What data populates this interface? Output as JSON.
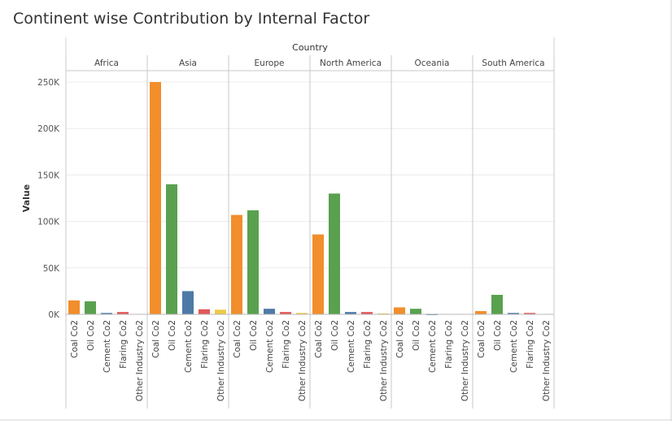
{
  "chart_data": {
    "type": "bar",
    "title": "Continent wise Contribution by Internal Factor",
    "column_header": "Country",
    "ylabel": "Value",
    "ylim": [
      0,
      250000
    ],
    "yticks": [
      {
        "value": 0,
        "label": "0K"
      },
      {
        "value": 50000,
        "label": "50K"
      },
      {
        "value": 100000,
        "label": "100K"
      },
      {
        "value": 150000,
        "label": "150K"
      },
      {
        "value": 200000,
        "label": "200K"
      },
      {
        "value": 250000,
        "label": "250K"
      }
    ],
    "grid": true,
    "categories": [
      "Coal Co2",
      "Oil Co2",
      "Cement Co2",
      "Flaring Co2",
      "Other Industry Co2"
    ],
    "category_colors": [
      "#f28e2b",
      "#59a14f",
      "#4e79a7",
      "#e15759",
      "#edc948"
    ],
    "panels": [
      {
        "name": "Africa",
        "values": [
          15000,
          14000,
          1500,
          2500,
          0
        ]
      },
      {
        "name": "Asia",
        "values": [
          250000,
          140000,
          25000,
          5500,
          5000
        ]
      },
      {
        "name": "Europe",
        "values": [
          107000,
          112000,
          6000,
          2500,
          1500
        ]
      },
      {
        "name": "North America",
        "values": [
          86000,
          130000,
          2500,
          2500,
          1000
        ]
      },
      {
        "name": "Oceania",
        "values": [
          7500,
          6000,
          500,
          0,
          0
        ]
      },
      {
        "name": "South America",
        "values": [
          3500,
          21000,
          1500,
          1500,
          0
        ]
      }
    ]
  }
}
